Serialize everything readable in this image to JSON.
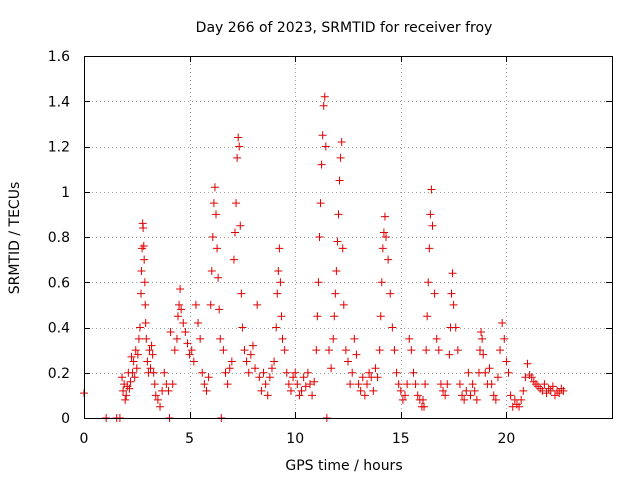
{
  "chart_data": {
    "type": "scatter",
    "title": "Day 266 of 2023, SRMTID for receiver froy",
    "xlabel": "GPS time / hours",
    "ylabel": "SRMTID / TECUs",
    "xlim": [
      0,
      25
    ],
    "ylim": [
      0,
      1.6
    ],
    "x_ticks": [
      0,
      5,
      10,
      15,
      20
    ],
    "x_tick_labels": [
      "0",
      "5",
      "10",
      "15",
      "20"
    ],
    "y_ticks": [
      0,
      0.2,
      0.4,
      0.6,
      0.8,
      1,
      1.2,
      1.4,
      1.6
    ],
    "y_tick_labels": [
      "0",
      "0.2",
      "0.4",
      "0.6",
      "0.8",
      "1",
      "1.2",
      "1.4",
      "1.6"
    ],
    "grid": true,
    "marker": "+",
    "color": "#e00000",
    "series": [
      {
        "name": "SRMTID",
        "x": [
          0.0,
          1.05,
          1.55,
          1.7,
          1.8,
          1.85,
          1.9,
          1.95,
          2.0,
          2.05,
          2.1,
          2.15,
          2.2,
          2.25,
          2.3,
          2.35,
          2.4,
          2.45,
          2.5,
          2.55,
          2.6,
          2.65,
          2.7,
          2.72,
          2.75,
          2.78,
          2.8,
          2.83,
          2.85,
          2.88,
          2.9,
          2.92,
          2.95,
          3.0,
          3.05,
          3.1,
          3.15,
          3.2,
          3.25,
          3.3,
          3.35,
          3.4,
          3.5,
          3.6,
          3.7,
          3.8,
          3.9,
          4.0,
          4.05,
          4.1,
          4.2,
          4.3,
          4.4,
          4.45,
          4.5,
          4.55,
          4.6,
          4.7,
          4.8,
          4.9,
          5.0,
          5.1,
          5.2,
          5.3,
          5.4,
          5.5,
          5.6,
          5.7,
          5.8,
          5.9,
          6.0,
          6.05,
          6.1,
          6.15,
          6.2,
          6.25,
          6.3,
          6.35,
          6.4,
          6.45,
          6.5,
          6.6,
          6.7,
          6.8,
          6.9,
          7.0,
          7.1,
          7.15,
          7.2,
          7.25,
          7.3,
          7.35,
          7.4,
          7.45,
          7.5,
          7.6,
          7.7,
          7.8,
          7.9,
          8.0,
          8.1,
          8.2,
          8.3,
          8.4,
          8.5,
          8.6,
          8.7,
          8.8,
          8.9,
          9.0,
          9.1,
          9.15,
          9.2,
          9.25,
          9.3,
          9.35,
          9.4,
          9.5,
          9.6,
          9.7,
          9.8,
          9.9,
          10.0,
          10.1,
          10.2,
          10.3,
          10.4,
          10.5,
          10.6,
          10.7,
          10.8,
          10.9,
          11.0,
          11.05,
          11.1,
          11.15,
          11.2,
          11.25,
          11.3,
          11.35,
          11.4,
          11.45,
          11.5,
          11.6,
          11.7,
          11.8,
          11.85,
          11.9,
          11.95,
          12.0,
          12.05,
          12.1,
          12.15,
          12.2,
          12.25,
          12.3,
          12.4,
          12.5,
          12.6,
          12.7,
          12.8,
          12.9,
          13.0,
          13.1,
          13.2,
          13.3,
          13.4,
          13.5,
          13.6,
          13.7,
          13.8,
          13.9,
          14.0,
          14.05,
          14.1,
          14.15,
          14.2,
          14.25,
          14.3,
          14.4,
          14.5,
          14.6,
          14.7,
          14.8,
          14.9,
          15.0,
          15.1,
          15.2,
          15.3,
          15.4,
          15.5,
          15.6,
          15.7,
          15.8,
          15.9,
          16.0,
          16.05,
          16.1,
          16.15,
          16.2,
          16.25,
          16.3,
          16.35,
          16.4,
          16.45,
          16.5,
          16.6,
          16.7,
          16.8,
          16.9,
          17.0,
          17.1,
          17.2,
          17.3,
          17.35,
          17.4,
          17.45,
          17.5,
          17.6,
          17.7,
          17.8,
          17.9,
          18.0,
          18.1,
          18.2,
          18.3,
          18.4,
          18.5,
          18.6,
          18.7,
          18.75,
          18.8,
          18.85,
          18.9,
          19.0,
          19.1,
          19.2,
          19.3,
          19.4,
          19.5,
          19.6,
          19.7,
          19.8,
          19.9,
          20.0,
          20.1,
          20.2,
          20.3,
          20.4,
          20.5,
          20.6,
          20.7,
          20.8,
          20.9,
          21.0,
          21.1,
          21.2,
          21.3,
          21.4,
          21.5,
          21.6,
          21.7,
          21.8,
          21.9,
          22.0,
          22.1,
          22.2,
          22.3,
          22.4,
          22.5,
          22.6,
          22.7
        ],
        "y": [
          0.11,
          0.0,
          0.0,
          0.0,
          0.18,
          0.12,
          0.15,
          0.08,
          0.1,
          0.14,
          0.2,
          0.13,
          0.16,
          0.27,
          0.2,
          0.25,
          0.18,
          0.3,
          0.22,
          0.28,
          0.35,
          0.4,
          0.55,
          0.65,
          0.75,
          0.86,
          0.84,
          0.76,
          0.7,
          0.6,
          0.5,
          0.42,
          0.35,
          0.25,
          0.2,
          0.3,
          0.22,
          0.32,
          0.28,
          0.2,
          0.15,
          0.1,
          0.08,
          0.05,
          0.12,
          0.2,
          0.15,
          0.12,
          0.0,
          0.38,
          0.15,
          0.3,
          0.35,
          0.45,
          0.5,
          0.57,
          0.48,
          0.42,
          0.38,
          0.33,
          0.28,
          0.3,
          0.25,
          0.5,
          0.42,
          0.35,
          0.2,
          0.15,
          0.12,
          0.18,
          0.5,
          0.65,
          0.8,
          0.95,
          1.02,
          0.9,
          0.75,
          0.62,
          0.48,
          0.35,
          0.0,
          0.3,
          0.2,
          0.15,
          0.22,
          0.25,
          0.7,
          0.82,
          0.95,
          1.15,
          1.24,
          1.2,
          0.85,
          0.55,
          0.4,
          0.3,
          0.25,
          0.2,
          0.28,
          0.32,
          0.22,
          0.5,
          0.18,
          0.12,
          0.2,
          0.15,
          0.1,
          0.18,
          0.22,
          0.25,
          0.4,
          0.55,
          0.65,
          0.75,
          0.6,
          0.45,
          0.35,
          0.3,
          0.2,
          0.15,
          0.12,
          0.18,
          0.2,
          0.15,
          0.1,
          0.12,
          0.18,
          0.14,
          0.2,
          0.15,
          0.1,
          0.16,
          0.3,
          0.45,
          0.6,
          0.8,
          0.95,
          1.12,
          1.25,
          1.38,
          1.42,
          1.2,
          0.0,
          0.3,
          0.22,
          0.35,
          0.45,
          0.55,
          0.65,
          0.78,
          0.9,
          1.05,
          1.15,
          1.22,
          0.75,
          0.5,
          0.3,
          0.25,
          0.15,
          0.2,
          0.35,
          0.28,
          0.15,
          0.12,
          0.18,
          0.1,
          0.15,
          0.2,
          0.18,
          0.12,
          0.22,
          0.18,
          0.3,
          0.45,
          0.6,
          0.75,
          0.82,
          0.89,
          0.8,
          0.7,
          0.55,
          0.4,
          0.3,
          0.2,
          0.15,
          0.12,
          0.08,
          0.1,
          0.15,
          0.35,
          0.3,
          0.2,
          0.15,
          0.1,
          0.08,
          0.05,
          0.08,
          0.05,
          0.15,
          0.3,
          0.45,
          0.6,
          0.75,
          0.9,
          1.01,
          0.85,
          0.55,
          0.35,
          0.3,
          0.15,
          0.12,
          0.1,
          0.15,
          0.28,
          0.4,
          0.55,
          0.64,
          0.5,
          0.4,
          0.3,
          0.15,
          0.1,
          0.08,
          0.12,
          0.2,
          0.1,
          0.15,
          0.12,
          0.08,
          0.2,
          0.3,
          0.38,
          0.35,
          0.28,
          0.2,
          0.15,
          0.22,
          0.15,
          0.1,
          0.08,
          0.18,
          0.3,
          0.42,
          0.35,
          0.25,
          0.2,
          0.1,
          0.05,
          0.08,
          0.06,
          0.05,
          0.08,
          0.12,
          0.18,
          0.24,
          0.19,
          0.18,
          0.16,
          0.15,
          0.14,
          0.13,
          0.12,
          0.15,
          0.11,
          0.13,
          0.12,
          0.14,
          0.1,
          0.12,
          0.11,
          0.13,
          0.12
        ]
      }
    ]
  }
}
